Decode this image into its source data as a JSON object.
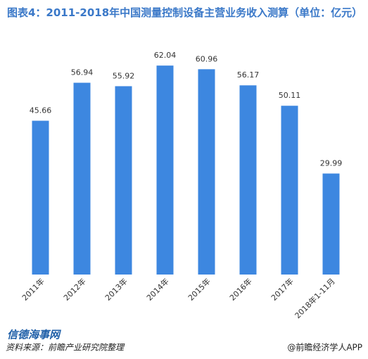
{
  "chart_data": {
    "type": "bar",
    "title": "图表4：2011-2018年中国测量控制设备主营业务收入测算（单位：亿元）",
    "categories": [
      "2011年",
      "2012年",
      "2013年",
      "2014年",
      "2015年",
      "2016年",
      "2017年",
      "2018年1-11月"
    ],
    "values": [
      45.66,
      56.94,
      55.92,
      62.04,
      60.96,
      56.17,
      50.11,
      29.99
    ],
    "color": "#3d87e0",
    "ylim": [
      0,
      65
    ],
    "source": "资料来源：前瞻产业研究院整理",
    "credit": "@前瞻经济学人APP",
    "logo": "信德海事网"
  }
}
